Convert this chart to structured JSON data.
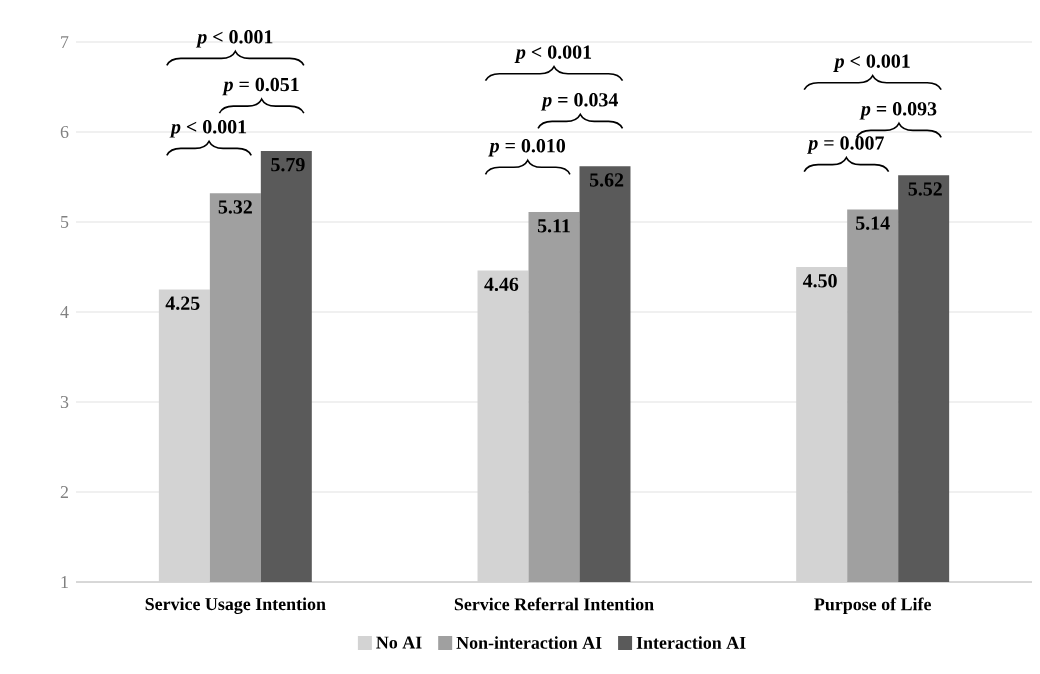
{
  "chart_data": {
    "type": "bar",
    "categories": [
      "Service Usage Intention",
      "Service Referral Intention",
      "Purpose of Life"
    ],
    "series": [
      {
        "name": "No AI",
        "color": "#d3d3d3",
        "values": [
          4.25,
          4.46,
          4.5
        ],
        "value_labels": [
          "4.25",
          "4.46",
          "4.50"
        ]
      },
      {
        "name": "Non-interaction AI",
        "color": "#a0a0a0",
        "values": [
          5.32,
          5.11,
          5.14
        ],
        "value_labels": [
          "5.32",
          "5.11",
          "5.14"
        ]
      },
      {
        "name": "Interaction AI",
        "color": "#5a5a5a",
        "values": [
          5.79,
          5.62,
          5.52
        ],
        "value_labels": [
          "5.79",
          "5.62",
          "5.52"
        ]
      }
    ],
    "ylim": [
      1,
      7
    ],
    "yticks": [
      1,
      2,
      3,
      4,
      5,
      6,
      7
    ],
    "grid": "y",
    "legend": "bottom",
    "annotations": [
      "*p* < 0.001",
      "*p* < 0.001",
      "*p* = 0.051",
      "*p* < 0.001",
      "*p* = 0.010",
      "*p* = 0.034",
      "*p* < 0.001",
      "*p* = 0.007",
      "*p* = 0.093"
    ]
  }
}
